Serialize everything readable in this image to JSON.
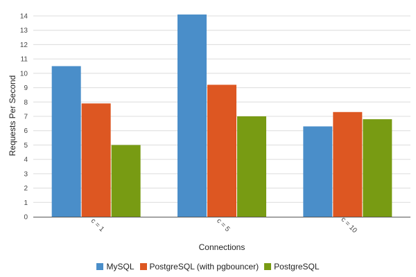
{
  "chart_data": {
    "type": "bar",
    "title": "",
    "xlabel": "Connections",
    "ylabel": "Requests Per Second",
    "categories": [
      "c = 1",
      "c = 5",
      "c = 10"
    ],
    "series": [
      {
        "name": "MySQL",
        "color": "#4a8ec9",
        "values": [
          10.5,
          14.1,
          6.3
        ]
      },
      {
        "name": "PostgreSQL (with pgbouncer)",
        "color": "#dd5722",
        "values": [
          7.9,
          9.2,
          7.3
        ]
      },
      {
        "name": "PostgreSQL",
        "color": "#789b13",
        "values": [
          5.0,
          7.0,
          6.8
        ]
      }
    ],
    "ylim": [
      0,
      14
    ],
    "yticks": [
      0,
      1,
      2,
      3,
      4,
      5,
      6,
      7,
      8,
      9,
      10,
      11,
      12,
      13,
      14
    ],
    "grid": true,
    "legend": "bottom-center"
  }
}
